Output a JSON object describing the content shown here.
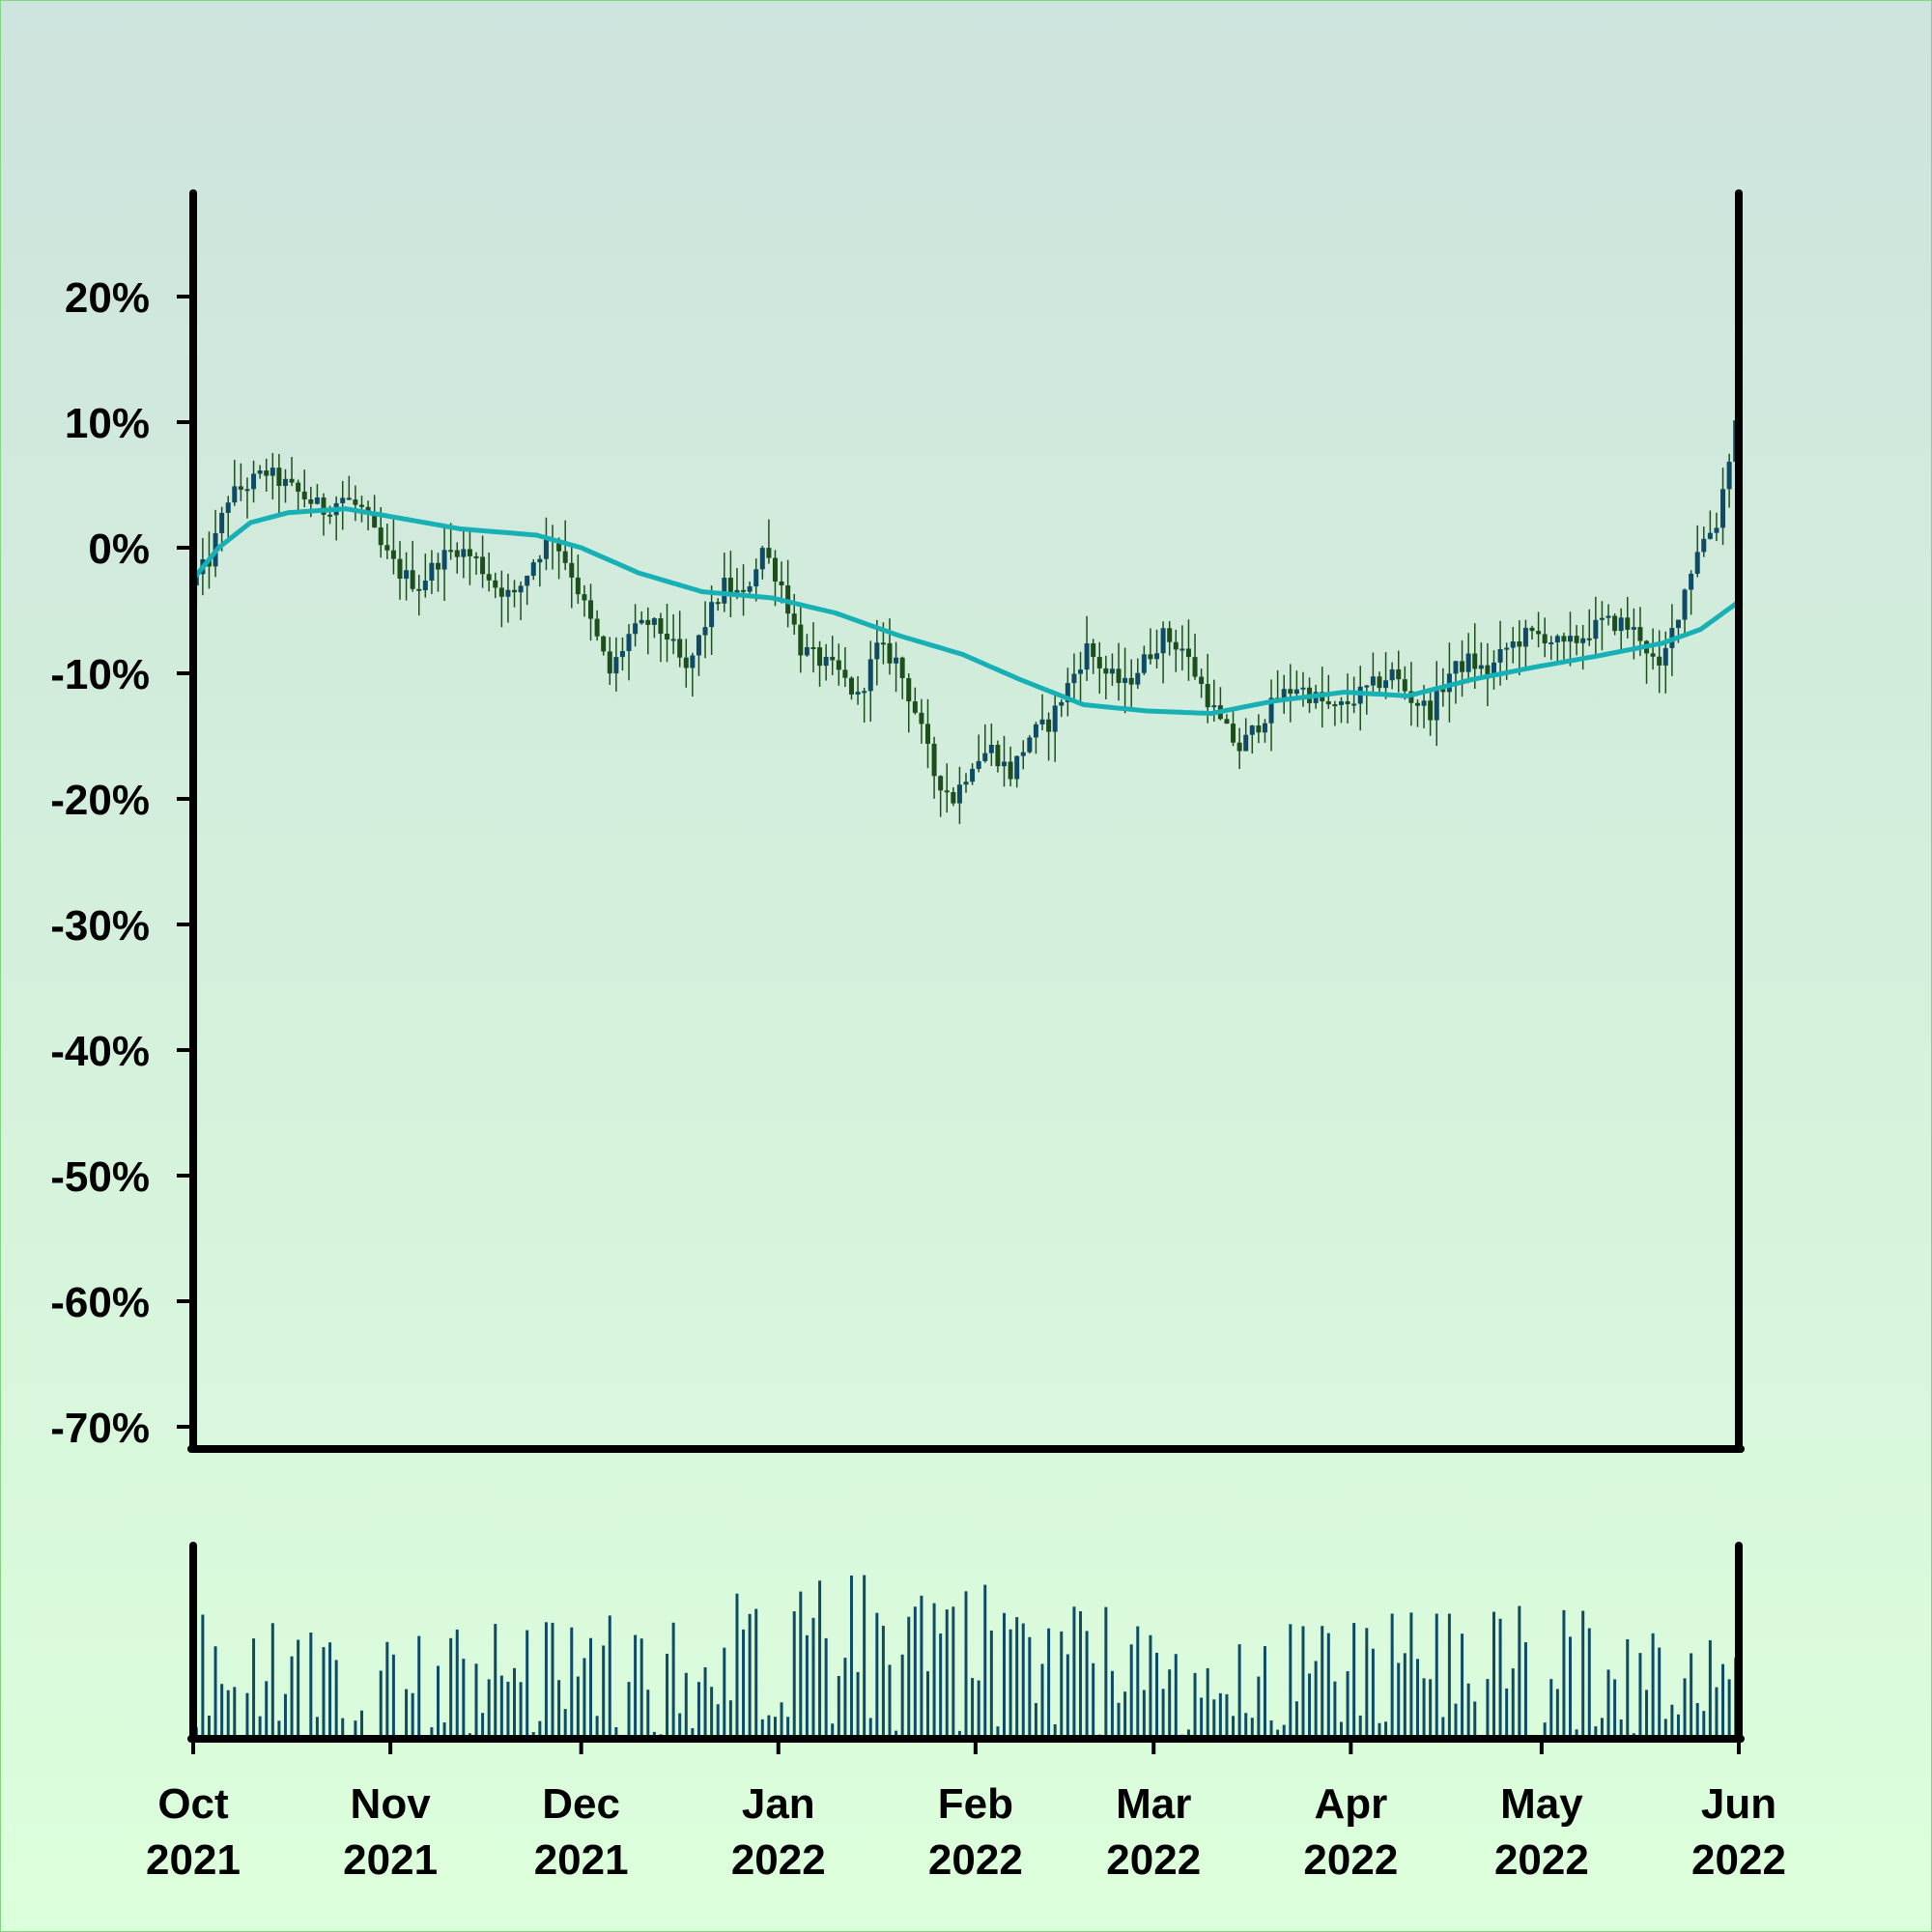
{
  "chart_data": [
    {
      "type": "candlestick",
      "title": "",
      "xlabel": "",
      "ylabel": "",
      "ylim": [
        -70,
        28
      ],
      "y_ticks": [
        "20%",
        "10%",
        "0%",
        "-10%",
        "-20%",
        "-30%",
        "-40%",
        "-50%",
        "-60%",
        "-70%"
      ],
      "y_tick_values": [
        20,
        10,
        0,
        -10,
        -20,
        -30,
        -40,
        -50,
        -60,
        -70
      ],
      "x_range": [
        "2021-10-01",
        "2022-06-01"
      ],
      "x_ticks": [
        {
          "date": "2021-10-01",
          "month": "Oct",
          "year": "2021"
        },
        {
          "date": "2021-11-01",
          "month": "Nov",
          "year": "2021"
        },
        {
          "date": "2021-12-01",
          "month": "Dec",
          "year": "2021"
        },
        {
          "date": "2022-01-01",
          "month": "Jan",
          "year": "2022"
        },
        {
          "date": "2022-02-01",
          "month": "Feb",
          "year": "2022"
        },
        {
          "date": "2022-03-01",
          "month": "Mar",
          "year": "2022"
        },
        {
          "date": "2022-04-01",
          "month": "Apr",
          "year": "2022"
        },
        {
          "date": "2022-05-01",
          "month": "May",
          "year": "2022"
        },
        {
          "date": "2022-06-01",
          "month": "Jun",
          "year": "2022"
        }
      ],
      "price_path": [
        [
          "2021-10-01",
          -3
        ],
        [
          "2021-10-04",
          -1
        ],
        [
          "2021-10-07",
          4
        ],
        [
          "2021-10-10",
          5
        ],
        [
          "2021-10-13",
          6
        ],
        [
          "2021-10-16",
          5
        ],
        [
          "2021-10-19",
          4
        ],
        [
          "2021-10-22",
          3
        ],
        [
          "2021-10-25",
          4
        ],
        [
          "2021-10-28",
          3
        ],
        [
          "2021-10-31",
          0
        ],
        [
          "2021-11-03",
          -2
        ],
        [
          "2021-11-06",
          -3
        ],
        [
          "2021-11-09",
          -1
        ],
        [
          "2021-11-12",
          0
        ],
        [
          "2021-11-15",
          -1
        ],
        [
          "2021-11-18",
          -3
        ],
        [
          "2021-11-21",
          -4
        ],
        [
          "2021-11-24",
          -1
        ],
        [
          "2021-11-27",
          1
        ],
        [
          "2021-11-30",
          -2
        ],
        [
          "2021-12-03",
          -6
        ],
        [
          "2021-12-06",
          -10
        ],
        [
          "2021-12-09",
          -7
        ],
        [
          "2021-12-12",
          -6
        ],
        [
          "2021-12-15",
          -7
        ],
        [
          "2021-12-18",
          -10
        ],
        [
          "2021-12-21",
          -6
        ],
        [
          "2021-12-24",
          -3
        ],
        [
          "2021-12-27",
          -4
        ],
        [
          "2021-12-30",
          0
        ],
        [
          "2022-01-02",
          -3
        ],
        [
          "2022-01-05",
          -8
        ],
        [
          "2022-01-08",
          -9
        ],
        [
          "2022-01-11",
          -10
        ],
        [
          "2022-01-14",
          -12
        ],
        [
          "2022-01-17",
          -8
        ],
        [
          "2022-01-20",
          -9
        ],
        [
          "2022-01-23",
          -13
        ],
        [
          "2022-01-26",
          -18
        ],
        [
          "2022-01-29",
          -20
        ],
        [
          "2022-02-01",
          -17
        ],
        [
          "2022-02-04",
          -16
        ],
        [
          "2022-02-07",
          -18
        ],
        [
          "2022-02-10",
          -15
        ],
        [
          "2022-02-13",
          -14
        ],
        [
          "2022-02-16",
          -11
        ],
        [
          "2022-02-19",
          -8
        ],
        [
          "2022-02-22",
          -10
        ],
        [
          "2022-02-25",
          -11
        ],
        [
          "2022-02-28",
          -9
        ],
        [
          "2022-03-03",
          -7
        ],
        [
          "2022-03-06",
          -8
        ],
        [
          "2022-03-09",
          -11
        ],
        [
          "2022-03-12",
          -14
        ],
        [
          "2022-03-15",
          -16
        ],
        [
          "2022-03-18",
          -14
        ],
        [
          "2022-03-21",
          -12
        ],
        [
          "2022-03-24",
          -11
        ],
        [
          "2022-03-27",
          -12
        ],
        [
          "2022-03-30",
          -13
        ],
        [
          "2022-04-02",
          -12
        ],
        [
          "2022-04-05",
          -11
        ],
        [
          "2022-04-08",
          -10
        ],
        [
          "2022-04-11",
          -12
        ],
        [
          "2022-04-14",
          -13
        ],
        [
          "2022-04-17",
          -10
        ],
        [
          "2022-04-20",
          -9
        ],
        [
          "2022-04-23",
          -10
        ],
        [
          "2022-04-26",
          -8
        ],
        [
          "2022-04-29",
          -7
        ],
        [
          "2022-05-02",
          -7
        ],
        [
          "2022-05-05",
          -8
        ],
        [
          "2022-05-08",
          -7
        ],
        [
          "2022-05-11",
          -6
        ],
        [
          "2022-05-14",
          -6
        ],
        [
          "2022-05-17",
          -7
        ],
        [
          "2022-05-20",
          -10
        ],
        [
          "2022-05-23",
          -5
        ],
        [
          "2022-05-26",
          0
        ],
        [
          "2022-05-29",
          2
        ],
        [
          "2022-06-01",
          10
        ]
      ],
      "moving_average": [
        [
          "2021-10-01",
          -2.5
        ],
        [
          "2021-10-05",
          0
        ],
        [
          "2021-10-10",
          2
        ],
        [
          "2021-10-16",
          2.8
        ],
        [
          "2021-10-25",
          3.1
        ],
        [
          "2021-11-02",
          2.4
        ],
        [
          "2021-11-12",
          1.5
        ],
        [
          "2021-11-24",
          1
        ],
        [
          "2021-12-01",
          0
        ],
        [
          "2021-12-10",
          -2
        ],
        [
          "2021-12-20",
          -3.5
        ],
        [
          "2021-12-31",
          -4
        ],
        [
          "2022-01-10",
          -5.2
        ],
        [
          "2022-01-20",
          -7
        ],
        [
          "2022-01-30",
          -8.5
        ],
        [
          "2022-02-08",
          -10.5
        ],
        [
          "2022-02-18",
          -12.5
        ],
        [
          "2022-02-28",
          -13
        ],
        [
          "2022-03-10",
          -13.2
        ],
        [
          "2022-03-20",
          -12.2
        ],
        [
          "2022-03-31",
          -11.5
        ],
        [
          "2022-04-10",
          -11.8
        ],
        [
          "2022-04-20",
          -10.5
        ],
        [
          "2022-04-30",
          -9.5
        ],
        [
          "2022-05-10",
          -8.6
        ],
        [
          "2022-05-20",
          -7.6
        ],
        [
          "2022-05-26",
          -6.5
        ],
        [
          "2022-06-01",
          -4.3
        ]
      ],
      "colors": {
        "up_body": "#0e4c66",
        "down_body": "#1c4f1c",
        "wick": "#1c4f1c",
        "moving_average": "#17b1b5",
        "axis": "#000000"
      }
    },
    {
      "type": "bar",
      "title": "",
      "xlabel": "",
      "ylabel": "",
      "x_range": [
        "2021-10-01",
        "2022-06-01"
      ],
      "volume_envelope": [
        [
          "2021-10-01",
          0.7
        ],
        [
          "2021-11-01",
          0.55
        ],
        [
          "2021-12-01",
          0.65
        ],
        [
          "2022-01-01",
          0.8
        ],
        [
          "2022-01-20",
          0.92
        ],
        [
          "2022-02-01",
          0.85
        ],
        [
          "2022-02-20",
          0.75
        ],
        [
          "2022-03-01",
          0.55
        ],
        [
          "2022-04-01",
          0.65
        ],
        [
          "2022-05-01",
          0.72
        ],
        [
          "2022-06-01",
          0.55
        ]
      ],
      "colors": {
        "bar": "#0e4c66",
        "axis": "#000000"
      }
    }
  ]
}
